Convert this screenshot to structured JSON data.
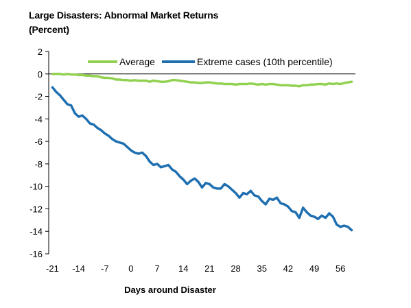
{
  "chart_data": {
    "type": "line",
    "title": "Large Disasters: Abnormal Market Returns",
    "subtitle": "(Percent)",
    "xlabel": "Days around Disaster",
    "ylabel": "",
    "xlim": [
      -22,
      60
    ],
    "ylim": [
      -16,
      2
    ],
    "xticks": [
      -21,
      -14,
      -7,
      0,
      7,
      14,
      21,
      28,
      35,
      42,
      49,
      56
    ],
    "yticks": [
      2,
      0,
      -2,
      -4,
      -6,
      -8,
      -10,
      -12,
      -14,
      -16
    ],
    "grid": false,
    "legend_position": "top",
    "colors": {
      "average": "#92D050",
      "extreme": "#1F6FB0",
      "axis": "#000000"
    },
    "series": [
      {
        "name": "Average",
        "x": [
          -21,
          -20,
          -19,
          -18,
          -17,
          -16,
          -15,
          -14,
          -13,
          -12,
          -11,
          -10,
          -9,
          -8,
          -7,
          -6,
          -5,
          -4,
          -3,
          -2,
          -1,
          0,
          1,
          2,
          3,
          4,
          5,
          6,
          7,
          8,
          9,
          10,
          11,
          12,
          13,
          14,
          15,
          16,
          17,
          18,
          19,
          20,
          21,
          22,
          23,
          24,
          25,
          26,
          27,
          28,
          29,
          30,
          31,
          32,
          33,
          34,
          35,
          36,
          37,
          38,
          39,
          40,
          41,
          42,
          43,
          44,
          45,
          46,
          47,
          48,
          49,
          50,
          51,
          52,
          53,
          54,
          55,
          56,
          57,
          58,
          59
        ],
        "values": [
          0.0,
          0.0,
          0.0,
          -0.05,
          0.0,
          -0.05,
          -0.05,
          -0.1,
          -0.1,
          -0.15,
          -0.15,
          -0.2,
          -0.2,
          -0.3,
          -0.35,
          -0.35,
          -0.4,
          -0.5,
          -0.5,
          -0.55,
          -0.55,
          -0.6,
          -0.55,
          -0.6,
          -0.6,
          -0.6,
          -0.7,
          -0.6,
          -0.65,
          -0.7,
          -0.7,
          -0.65,
          -0.55,
          -0.55,
          -0.6,
          -0.65,
          -0.7,
          -0.75,
          -0.75,
          -0.8,
          -0.8,
          -0.75,
          -0.75,
          -0.8,
          -0.85,
          -0.85,
          -0.9,
          -0.9,
          -0.9,
          -0.95,
          -0.9,
          -0.9,
          -0.9,
          -0.85,
          -0.9,
          -0.95,
          -0.9,
          -0.95,
          -0.9,
          -0.9,
          -0.95,
          -1.0,
          -1.0,
          -1.0,
          -1.05,
          -1.05,
          -1.1,
          -1.0,
          -1.0,
          -0.95,
          -0.95,
          -0.9,
          -0.9,
          -0.95,
          -0.85,
          -0.9,
          -0.85,
          -0.9,
          -0.8,
          -0.75,
          -0.7
        ]
      },
      {
        "name": "Extreme cases (10th percentile)",
        "x": [
          -21,
          -20,
          -19,
          -18,
          -17,
          -16,
          -15,
          -14,
          -13,
          -12,
          -11,
          -10,
          -9,
          -8,
          -7,
          -6,
          -5,
          -4,
          -3,
          -2,
          -1,
          0,
          1,
          2,
          3,
          4,
          5,
          6,
          7,
          8,
          9,
          10,
          11,
          12,
          13,
          14,
          15,
          16,
          17,
          18,
          19,
          20,
          21,
          22,
          23,
          24,
          25,
          26,
          27,
          28,
          29,
          30,
          31,
          32,
          33,
          34,
          35,
          36,
          37,
          38,
          39,
          40,
          41,
          42,
          43,
          44,
          45,
          46,
          47,
          48,
          49,
          50,
          51,
          52,
          53,
          54,
          55,
          56,
          57,
          58,
          59
        ],
        "values": [
          -1.2,
          -1.6,
          -1.9,
          -2.3,
          -2.7,
          -2.8,
          -3.5,
          -3.8,
          -3.7,
          -4.0,
          -4.4,
          -4.5,
          -4.8,
          -5.0,
          -5.3,
          -5.5,
          -5.8,
          -6.0,
          -6.1,
          -6.2,
          -6.5,
          -6.8,
          -7.0,
          -7.1,
          -7.0,
          -7.3,
          -7.8,
          -8.1,
          -8.0,
          -8.3,
          -8.2,
          -8.1,
          -8.5,
          -8.7,
          -9.1,
          -9.4,
          -9.8,
          -9.5,
          -9.3,
          -9.6,
          -10.1,
          -9.7,
          -9.8,
          -10.1,
          -10.2,
          -10.2,
          -9.8,
          -10.0,
          -10.3,
          -10.6,
          -11.0,
          -10.6,
          -10.7,
          -10.4,
          -10.8,
          -10.9,
          -11.3,
          -11.6,
          -11.1,
          -11.2,
          -11.0,
          -11.5,
          -11.6,
          -11.8,
          -12.2,
          -12.3,
          -12.8,
          -11.9,
          -12.3,
          -12.6,
          -12.7,
          -12.9,
          -12.6,
          -12.8,
          -12.4,
          -12.7,
          -13.4,
          -13.6,
          -13.5,
          -13.6,
          -13.9
        ]
      }
    ]
  }
}
